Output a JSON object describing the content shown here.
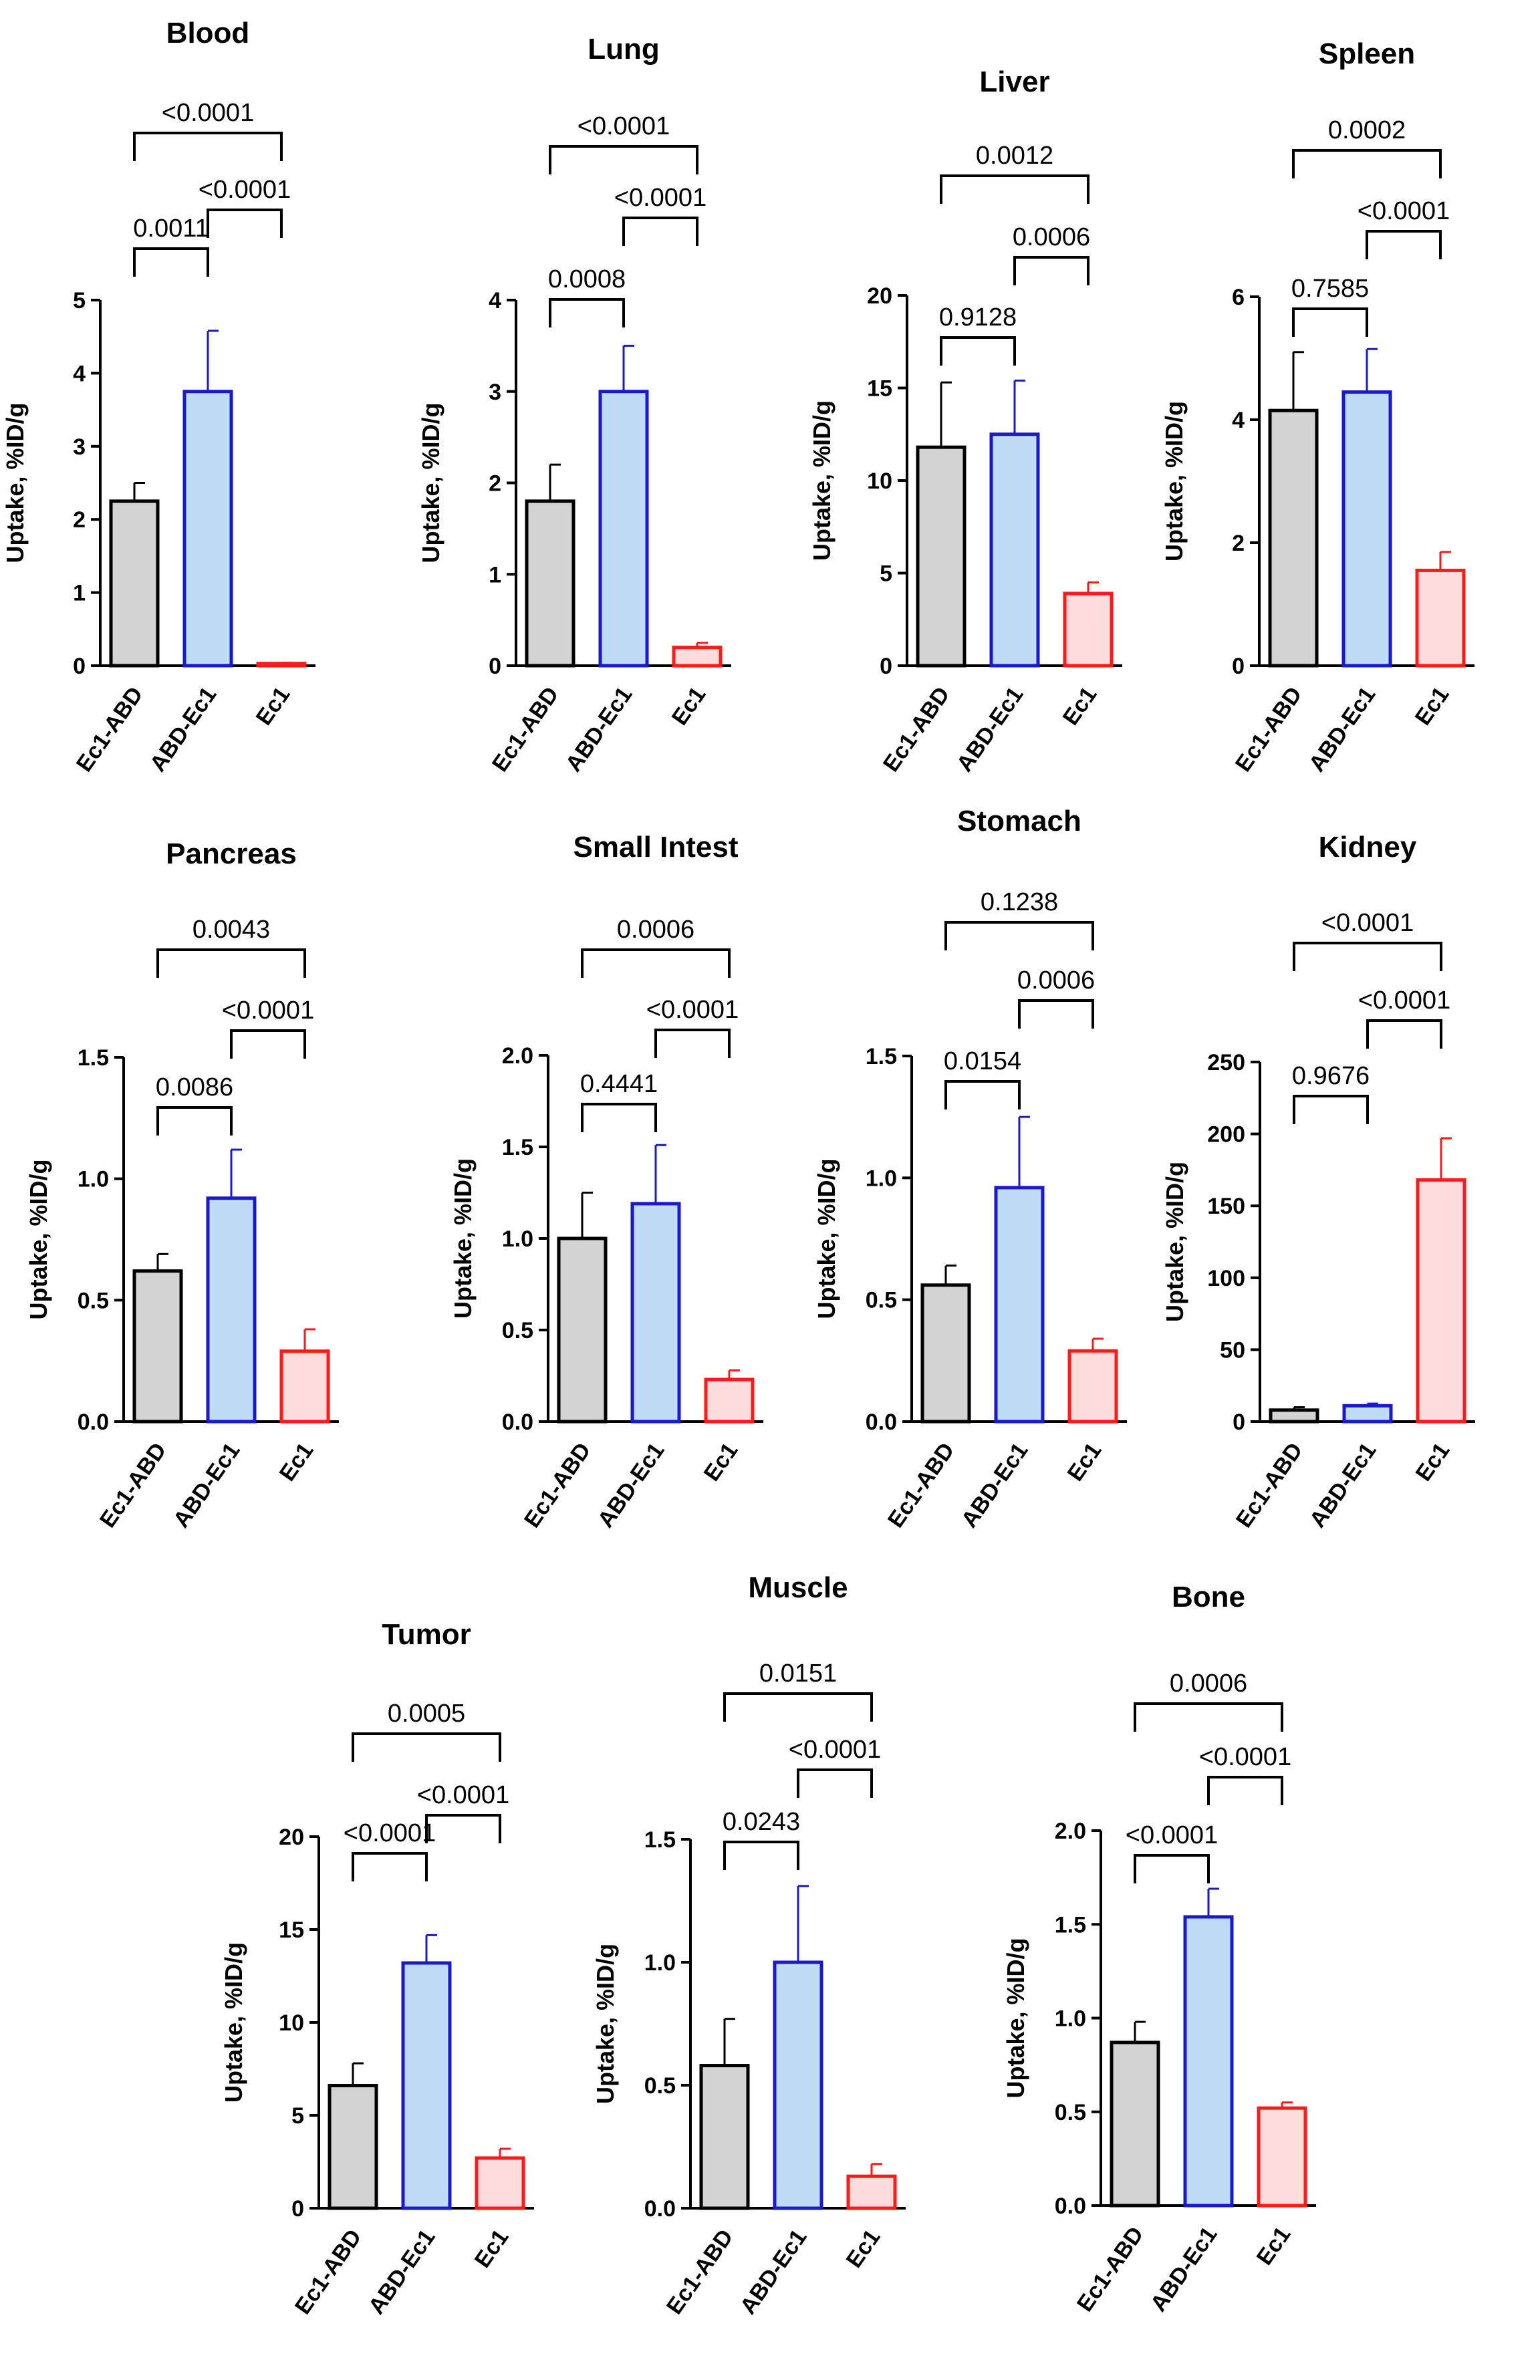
{
  "styles": {
    "Ec1-ABD": {
      "fill": "#d3d3d3",
      "stroke": "#000000"
    },
    "ABD-Ec1": {
      "fill": "#bfdcf7",
      "stroke": "#1a1acc"
    },
    "Ec1": {
      "fill": "#fddcdc",
      "stroke": "#ff1a1a"
    }
  },
  "chart_data": [
    {
      "type": "bar",
      "title": "Blood",
      "ylabel": "Uptake, %ID/g",
      "categories": [
        "Ec1-ABD",
        "ABD-Ec1",
        "Ec1"
      ],
      "values": [
        2.25,
        3.75,
        0.03
      ],
      "errors": [
        0.25,
        0.83,
        0.01
      ],
      "ylim": [
        0,
        5
      ],
      "yticks": [
        0,
        1,
        2,
        3,
        4,
        5
      ],
      "ytick_labels": [
        "0",
        "1",
        "2",
        "3",
        "4",
        "5"
      ],
      "comparisons": [
        {
          "from": 0,
          "to": 1,
          "label": "0.0011"
        },
        {
          "from": 1,
          "to": 2,
          "label": "<0.0001"
        },
        {
          "from": 0,
          "to": 2,
          "label": "<0.0001"
        }
      ]
    },
    {
      "type": "bar",
      "title": "Lung",
      "ylabel": "Uptake, %ID/g",
      "categories": [
        "Ec1-ABD",
        "ABD-Ec1",
        "Ec1"
      ],
      "values": [
        1.8,
        3.0,
        0.2
      ],
      "errors": [
        0.4,
        0.5,
        0.05
      ],
      "ylim": [
        0,
        4
      ],
      "yticks": [
        0,
        1,
        2,
        3,
        4
      ],
      "ytick_labels": [
        "0",
        "1",
        "2",
        "3",
        "4"
      ],
      "comparisons": [
        {
          "from": 0,
          "to": 1,
          "label": "0.0008"
        },
        {
          "from": 1,
          "to": 2,
          "label": "<0.0001"
        },
        {
          "from": 0,
          "to": 2,
          "label": "<0.0001"
        }
      ]
    },
    {
      "type": "bar",
      "title": "Liver",
      "ylabel": "Uptake, %ID/g",
      "categories": [
        "Ec1-ABD",
        "ABD-Ec1",
        "Ec1"
      ],
      "values": [
        11.8,
        12.5,
        3.9
      ],
      "errors": [
        3.5,
        2.9,
        0.6
      ],
      "ylim": [
        0,
        20
      ],
      "yticks": [
        0,
        5,
        10,
        15,
        20
      ],
      "ytick_labels": [
        "0",
        "5",
        "10",
        "15",
        "20"
      ],
      "comparisons": [
        {
          "from": 0,
          "to": 1,
          "label": "0.9128"
        },
        {
          "from": 1,
          "to": 2,
          "label": "0.0006"
        },
        {
          "from": 0,
          "to": 2,
          "label": "0.0012"
        }
      ]
    },
    {
      "type": "bar",
      "title": "Spleen",
      "ylabel": "Uptake, %ID/g",
      "categories": [
        "Ec1-ABD",
        "ABD-Ec1",
        "Ec1"
      ],
      "values": [
        4.15,
        4.45,
        1.55
      ],
      "errors": [
        0.95,
        0.7,
        0.3
      ],
      "ylim": [
        0,
        6
      ],
      "yticks": [
        0,
        2,
        4,
        6
      ],
      "ytick_labels": [
        "0",
        "2",
        "4",
        "6"
      ],
      "comparisons": [
        {
          "from": 0,
          "to": 1,
          "label": "0.7585"
        },
        {
          "from": 1,
          "to": 2,
          "label": "<0.0001"
        },
        {
          "from": 0,
          "to": 2,
          "label": "0.0002"
        }
      ]
    },
    {
      "type": "bar",
      "title": "Pancreas",
      "ylabel": "Uptake, %ID/g",
      "categories": [
        "Ec1-ABD",
        "ABD-Ec1",
        "Ec1"
      ],
      "values": [
        0.62,
        0.92,
        0.29
      ],
      "errors": [
        0.07,
        0.2,
        0.09
      ],
      "ylim": [
        0,
        1.5
      ],
      "yticks": [
        0,
        0.5,
        1.0,
        1.5
      ],
      "ytick_labels": [
        "0.0",
        "0.5",
        "1.0",
        "1.5"
      ],
      "comparisons": [
        {
          "from": 0,
          "to": 1,
          "label": "0.0086"
        },
        {
          "from": 1,
          "to": 2,
          "label": "<0.0001"
        },
        {
          "from": 0,
          "to": 2,
          "label": "0.0043"
        }
      ]
    },
    {
      "type": "bar",
      "title": "Small Intest",
      "ylabel": "Uptake, %ID/g",
      "categories": [
        "Ec1-ABD",
        "ABD-Ec1",
        "Ec1"
      ],
      "values": [
        1.0,
        1.19,
        0.23
      ],
      "errors": [
        0.25,
        0.32,
        0.05
      ],
      "ylim": [
        0,
        2.0
      ],
      "yticks": [
        0,
        0.5,
        1.0,
        1.5,
        2.0
      ],
      "ytick_labels": [
        "0.0",
        "0.5",
        "1.0",
        "1.5",
        "2.0"
      ],
      "comparisons": [
        {
          "from": 0,
          "to": 1,
          "label": "0.4441"
        },
        {
          "from": 1,
          "to": 2,
          "label": "<0.0001"
        },
        {
          "from": 0,
          "to": 2,
          "label": "0.0006"
        }
      ]
    },
    {
      "type": "bar",
      "title": "Stomach",
      "ylabel": "Uptake, %ID/g",
      "categories": [
        "Ec1-ABD",
        "ABD-Ec1",
        "Ec1"
      ],
      "values": [
        0.56,
        0.96,
        0.29
      ],
      "errors": [
        0.08,
        0.29,
        0.05
      ],
      "ylim": [
        0,
        1.5
      ],
      "yticks": [
        0,
        0.5,
        1.0,
        1.5
      ],
      "ytick_labels": [
        "0.0",
        "0.5",
        "1.0",
        "1.5"
      ],
      "comparisons": [
        {
          "from": 0,
          "to": 1,
          "label": "0.0154"
        },
        {
          "from": 1,
          "to": 2,
          "label": "0.0006"
        },
        {
          "from": 0,
          "to": 2,
          "label": "0.1238"
        }
      ]
    },
    {
      "type": "bar",
      "title": "Kidney",
      "ylabel": "Uptake, %ID/g",
      "categories": [
        "Ec1-ABD",
        "ABD-Ec1",
        "Ec1"
      ],
      "values": [
        8,
        11,
        168
      ],
      "errors": [
        2,
        1.5,
        29
      ],
      "ylim": [
        0,
        250
      ],
      "yticks": [
        0,
        50,
        100,
        150,
        200,
        250
      ],
      "ytick_labels": [
        "0",
        "50",
        "100",
        "150",
        "200",
        "250"
      ],
      "comparisons": [
        {
          "from": 0,
          "to": 1,
          "label": "0.9676"
        },
        {
          "from": 1,
          "to": 2,
          "label": "<0.0001"
        },
        {
          "from": 0,
          "to": 2,
          "label": "<0.0001"
        }
      ]
    },
    {
      "type": "bar",
      "title": "Tumor",
      "ylabel": "Uptake, %ID/g",
      "categories": [
        "Ec1-ABD",
        "ABD-Ec1",
        "Ec1"
      ],
      "values": [
        6.6,
        13.2,
        2.7
      ],
      "errors": [
        1.2,
        1.5,
        0.5
      ],
      "ylim": [
        0,
        20
      ],
      "yticks": [
        0,
        5,
        10,
        15,
        20
      ],
      "ytick_labels": [
        "0",
        "5",
        "10",
        "15",
        "20"
      ],
      "comparisons": [
        {
          "from": 0,
          "to": 1,
          "label": "<0.0001"
        },
        {
          "from": 1,
          "to": 2,
          "label": "<0.0001"
        },
        {
          "from": 0,
          "to": 2,
          "label": "0.0005"
        }
      ]
    },
    {
      "type": "bar",
      "title": "Muscle",
      "ylabel": "Uptake, %ID/g",
      "categories": [
        "Ec1-ABD",
        "ABD-Ec1",
        "Ec1"
      ],
      "values": [
        0.58,
        1.0,
        0.13
      ],
      "errors": [
        0.19,
        0.31,
        0.05
      ],
      "ylim": [
        0,
        1.5
      ],
      "yticks": [
        0,
        0.5,
        1.0,
        1.5
      ],
      "ytick_labels": [
        "0.0",
        "0.5",
        "1.0",
        "1.5"
      ],
      "comparisons": [
        {
          "from": 0,
          "to": 1,
          "label": "0.0243"
        },
        {
          "from": 1,
          "to": 2,
          "label": "<0.0001"
        },
        {
          "from": 0,
          "to": 2,
          "label": "0.0151"
        }
      ]
    },
    {
      "type": "bar",
      "title": "Bone",
      "ylabel": "Uptake, %ID/g",
      "categories": [
        "Ec1-ABD",
        "ABD-Ec1",
        "Ec1"
      ],
      "values": [
        0.87,
        1.54,
        0.52
      ],
      "errors": [
        0.11,
        0.15,
        0.03
      ],
      "ylim": [
        0,
        2.0
      ],
      "yticks": [
        0,
        0.5,
        1.0,
        1.5,
        2.0
      ],
      "ytick_labels": [
        "0.0",
        "0.5",
        "1.0",
        "1.5",
        "2.0"
      ],
      "comparisons": [
        {
          "from": 0,
          "to": 1,
          "label": "<0.0001"
        },
        {
          "from": 1,
          "to": 2,
          "label": "<0.0001"
        },
        {
          "from": 0,
          "to": 2,
          "label": "0.0006"
        }
      ]
    }
  ]
}
